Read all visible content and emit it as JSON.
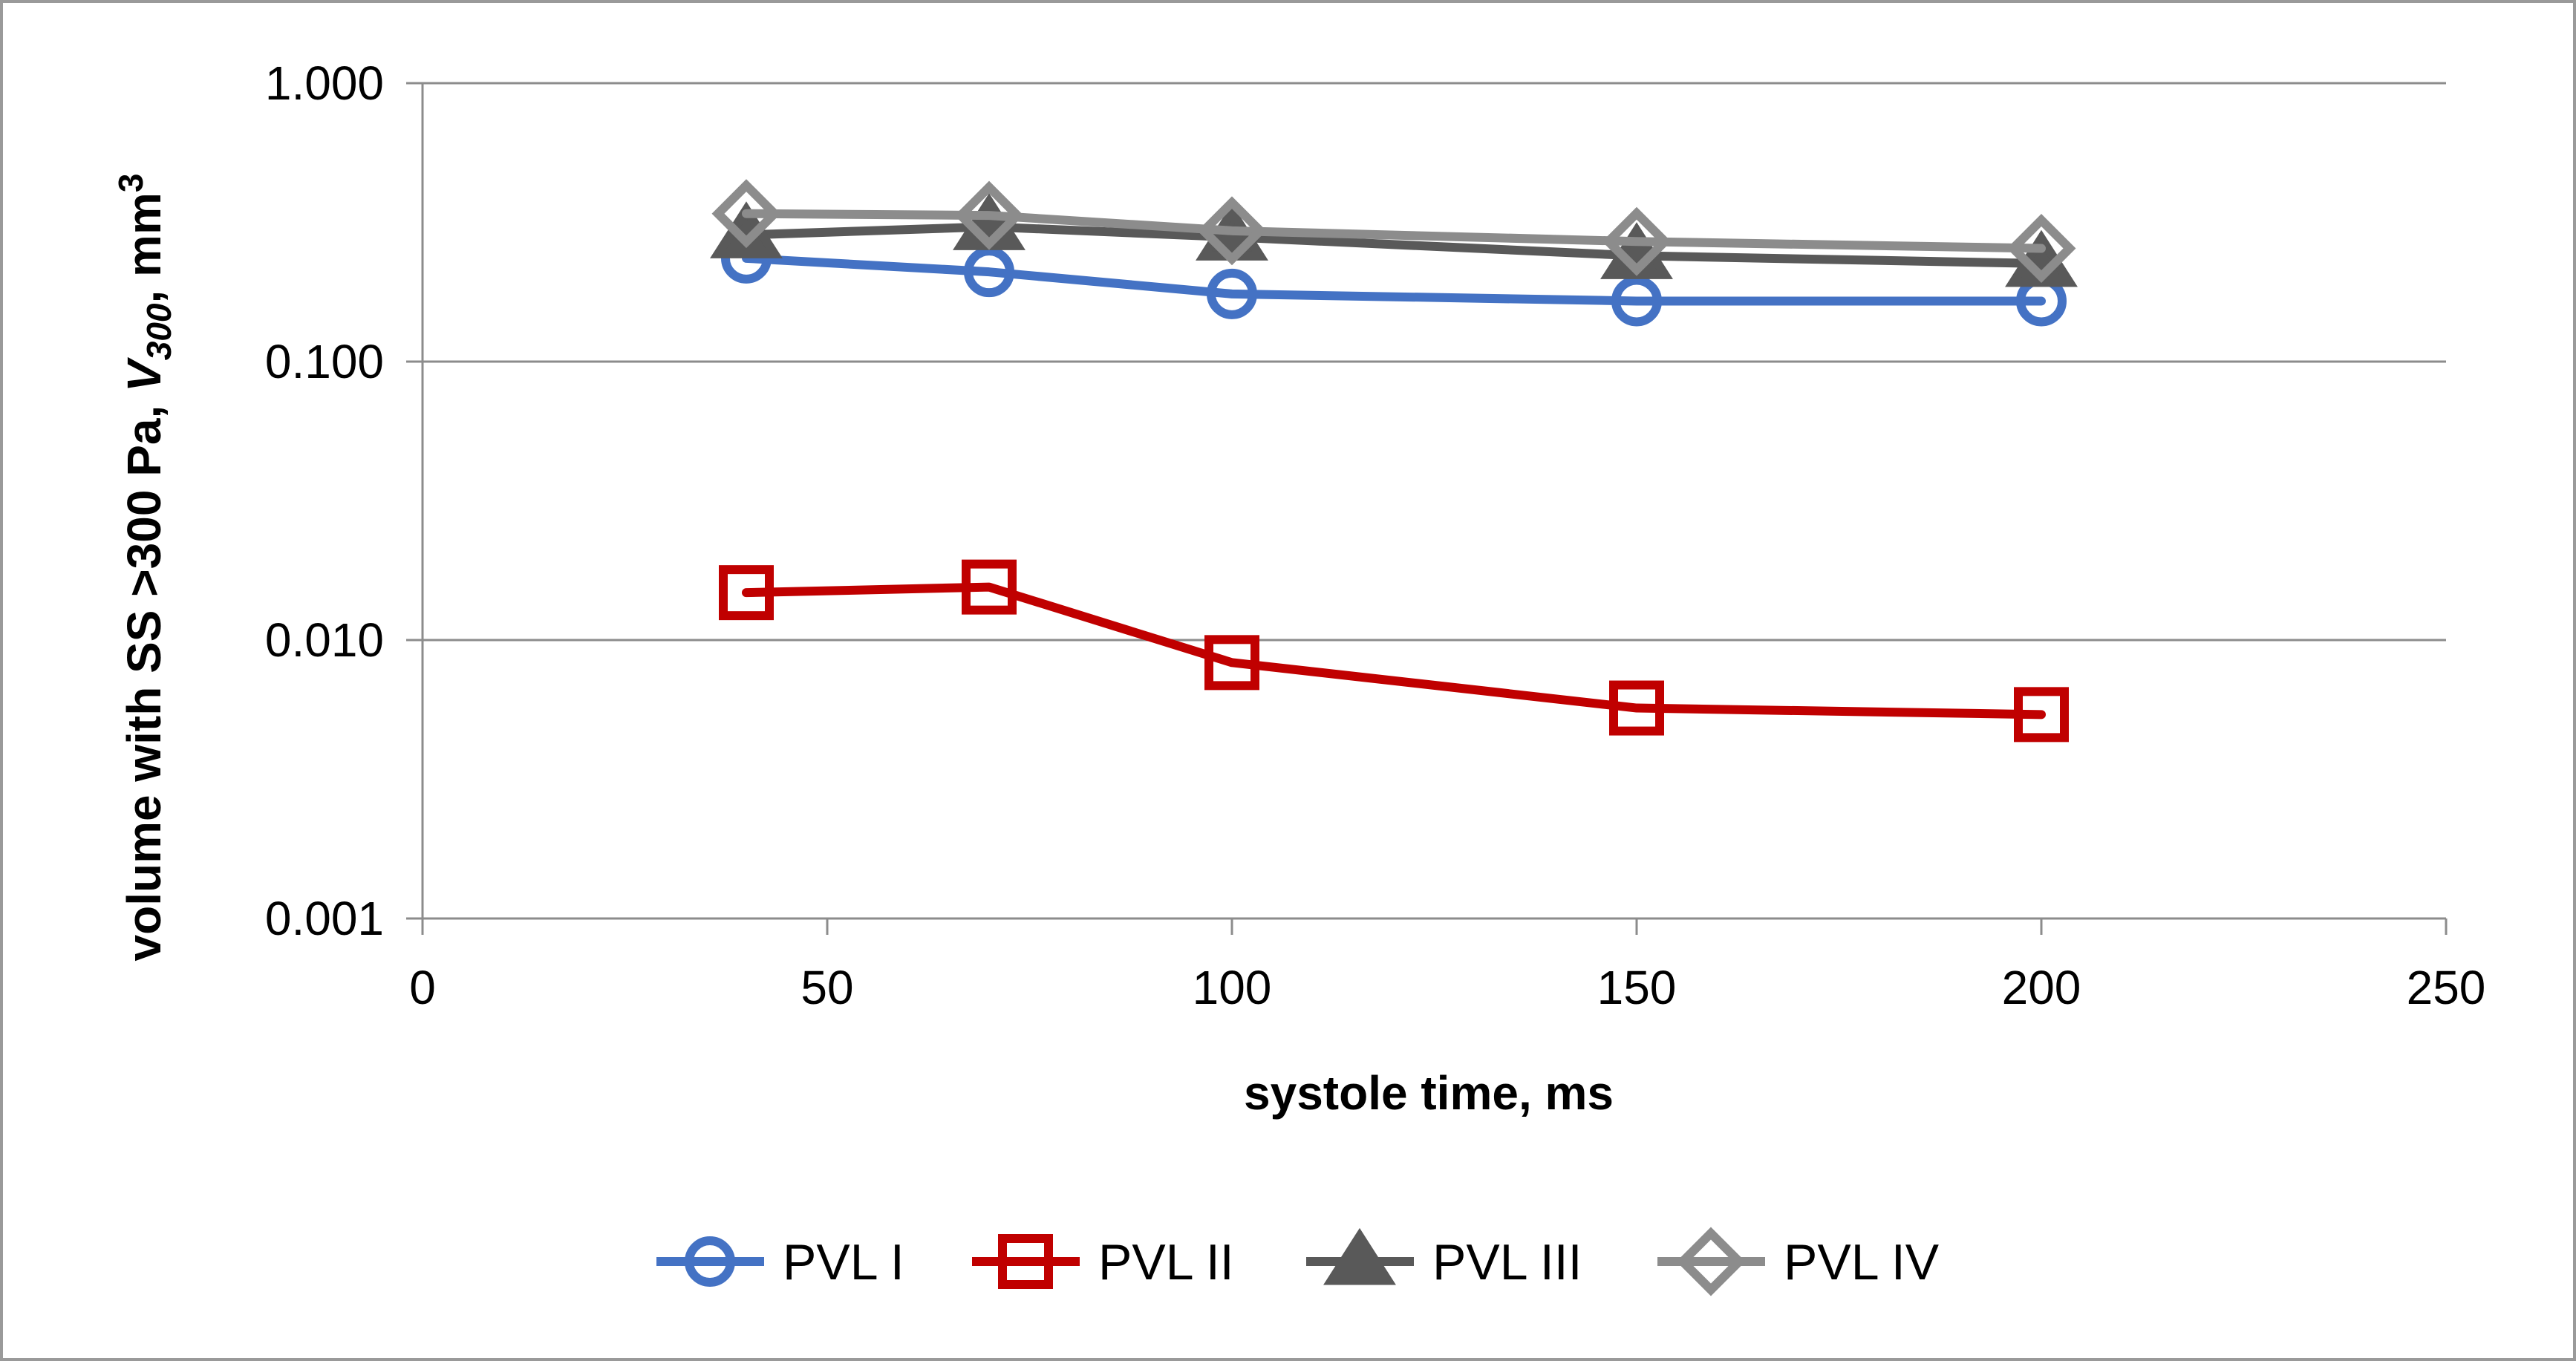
{
  "chart_data": {
    "type": "line",
    "xlabel": "systole time, ms",
    "ylabel": {
      "prefix": "volume with SS >300 Pa,  ",
      "var": "V",
      "var_sub": "300",
      "suffix": ", mm",
      "sup": "3"
    },
    "x_ticks": [
      "0",
      "50",
      "100",
      "150",
      "200",
      "250"
    ],
    "y_ticks": [
      "0.001",
      "0.010",
      "0.100",
      "1.000"
    ],
    "xlim": [
      0,
      250
    ],
    "ylim": [
      0.001,
      1.0
    ],
    "y_scale": "log",
    "grid": {
      "horizontal": true,
      "vertical": false
    },
    "legend_position": "bottom",
    "x": [
      40,
      70,
      100,
      150,
      200
    ],
    "series": [
      {
        "name": "PVL I",
        "marker": "circle",
        "color": "#4472C4",
        "values": [
          0.235,
          0.21,
          0.175,
          0.165,
          0.165
        ]
      },
      {
        "name": "PVL II",
        "marker": "square",
        "color": "#C00000",
        "values": [
          0.0148,
          0.0155,
          0.0083,
          0.0057,
          0.0054
        ]
      },
      {
        "name": "PVL III",
        "marker": "triangle",
        "color": "#595959",
        "values": [
          0.285,
          0.305,
          0.28,
          0.24,
          0.225
        ]
      },
      {
        "name": "PVL IV",
        "marker": "diamond",
        "color": "#8C8C8C",
        "values": [
          0.34,
          0.335,
          0.295,
          0.27,
          0.255
        ]
      }
    ]
  }
}
